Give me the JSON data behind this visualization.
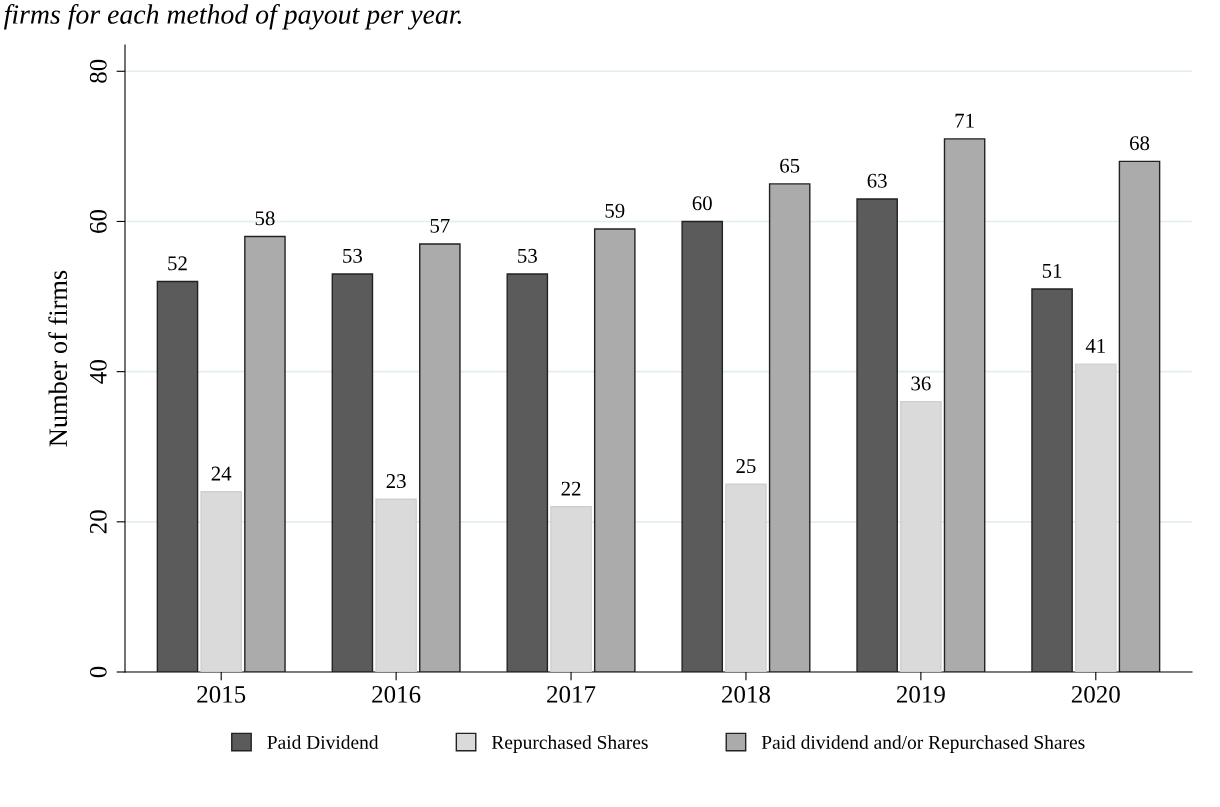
{
  "chart_data": {
    "type": "bar",
    "ylabel": "Number of firms",
    "annotations": [
      "firms for each method of payout per year."
    ],
    "categories": [
      "2015",
      "2016",
      "2017",
      "2018",
      "2019",
      "2020"
    ],
    "series": [
      {
        "name": "Paid Dividend",
        "color": "#5b5b5b",
        "values": [
          52,
          53,
          53,
          60,
          63,
          51
        ]
      },
      {
        "name": "Repurchased Shares",
        "color": "#dadada",
        "values": [
          24,
          23,
          22,
          25,
          36,
          41
        ]
      },
      {
        "name": "Paid dividend and/or Repurchased Shares",
        "color": "#ababab",
        "values": [
          58,
          57,
          59,
          65,
          71,
          68
        ]
      }
    ],
    "ylim": [
      0,
      83.5
    ],
    "yticks": [
      0,
      20,
      40,
      60,
      80
    ],
    "grid": "y",
    "legend": "bottom",
    "data_labels": true
  }
}
